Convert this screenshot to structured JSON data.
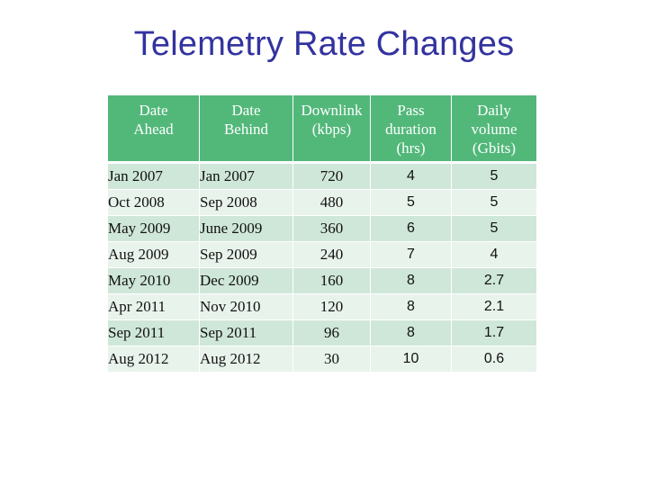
{
  "title": "Telemetry Rate Changes",
  "table": {
    "headers": [
      [
        "Date",
        "Ahead"
      ],
      [
        "Date",
        "Behind"
      ],
      [
        "Downlink",
        "(kbps)"
      ],
      [
        "Pass",
        "duration",
        "(hrs)"
      ],
      [
        "Daily",
        "volume",
        "(Gbits)"
      ]
    ],
    "rows": [
      [
        "Jan 2007",
        "Jan 2007",
        "720",
        "4",
        "5"
      ],
      [
        "Oct 2008",
        "Sep 2008",
        "480",
        "5",
        "5"
      ],
      [
        "May 2009",
        "June 2009",
        "360",
        "6",
        "5"
      ],
      [
        "Aug 2009",
        "Sep 2009",
        "240",
        "7",
        "4"
      ],
      [
        "May 2010",
        "Dec 2009",
        "160",
        "8",
        "2.7"
      ],
      [
        "Apr 2011",
        "Nov 2010",
        "120",
        "8",
        "2.1"
      ],
      [
        "Sep 2011",
        "Sep 2011",
        "96",
        "8",
        "1.7"
      ],
      [
        "Aug 2012",
        "Aug 2012",
        "30",
        "10",
        "0.6"
      ]
    ]
  },
  "colors": {
    "title": "#3333a0",
    "header_bg": "#52b87a",
    "row_odd": "#cfe7d9",
    "row_even": "#e8f3ec"
  }
}
